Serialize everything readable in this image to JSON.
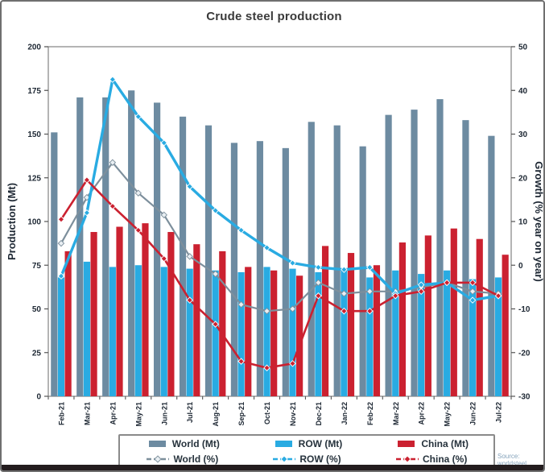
{
  "title": "Crude steel production",
  "source": "Source: worldsteel",
  "colors": {
    "world_bar": "#6d8ba1",
    "row_bar": "#29abe2",
    "china_bar": "#cb2130",
    "world_line": "#7d8f9c",
    "row_line": "#29abe2",
    "china_line": "#cb2130",
    "axis_text": "#1d2733",
    "title_text": "#3a3a3a",
    "source_text": "#85a3bb",
    "plot_border": "#8c8c8c"
  },
  "chart_data": {
    "type": "bar+line combo",
    "title": "Crude steel production",
    "categories": [
      "Feb-21",
      "Mar-21",
      "Apr-21",
      "May-21",
      "Jun-21",
      "Jul-21",
      "Aug-21",
      "Sep-21",
      "Oct-21",
      "Nov-21",
      "Dec-21",
      "Jan-22",
      "Feb-22",
      "Mar-22",
      "Apr-22",
      "May-22",
      "Jun-22",
      "Jul-22"
    ],
    "bar_series": [
      {
        "name": "World (Mt)",
        "color_key": "world_bar",
        "axis": "left",
        "values": [
          151,
          171,
          171,
          175,
          168,
          160,
          155,
          145,
          146,
          142,
          157,
          155,
          143,
          161,
          164,
          170,
          158,
          149
        ]
      },
      {
        "name": "ROW (Mt)",
        "color_key": "row_bar",
        "axis": "left",
        "values": [
          68,
          77,
          74,
          75,
          74,
          73,
          72,
          71,
          74,
          73,
          71,
          72,
          68,
          72,
          70,
          72,
          67,
          68
        ]
      },
      {
        "name": "China (Mt)",
        "color_key": "china_bar",
        "axis": "left",
        "values": [
          83,
          94,
          97,
          99,
          94,
          87,
          83,
          74,
          72,
          69,
          86,
          82,
          75,
          88,
          92,
          96,
          90,
          81
        ]
      }
    ],
    "line_series": [
      {
        "name": "World (%)",
        "color_key": "world_line",
        "axis": "right",
        "marker": "diamond",
        "marker_fill": "#e9eff3",
        "width": 2.2,
        "values": [
          5,
          15.5,
          23.5,
          16.5,
          11.5,
          2,
          -2,
          -9,
          -10.5,
          -10,
          -4,
          -6.5,
          -6,
          -6,
          -5,
          -4,
          -6,
          -6.5
        ]
      },
      {
        "name": "ROW (%)",
        "color_key": "row_line",
        "axis": "right",
        "marker": "diamond",
        "marker_fill": "#29abe2",
        "width": 3.4,
        "values": [
          -2.5,
          12,
          42.5,
          34,
          28,
          18,
          12.5,
          8,
          4,
          0.5,
          -0.5,
          -1,
          -0.5,
          -6.5,
          -4.5,
          -4,
          -8,
          -7
        ]
      },
      {
        "name": "China (%)",
        "color_key": "china_line",
        "axis": "right",
        "marker": "diamond",
        "marker_fill": "#cb2130",
        "width": 2.6,
        "values": [
          10.5,
          19.5,
          13.5,
          8,
          1.5,
          -8,
          -13.5,
          -22,
          -23.5,
          -22.5,
          -7,
          -10.5,
          -10.5,
          -7,
          -6,
          -4,
          -4,
          -7
        ]
      }
    ],
    "left_axis": {
      "label": "Production (Mt)",
      "min": 0,
      "max": 200,
      "step": 25
    },
    "right_axis": {
      "label": "Growth (% year on year)",
      "min": -30,
      "max": 50,
      "step": 10
    },
    "grid": false,
    "legend_position": "bottom"
  },
  "legend": {
    "items": [
      {
        "label": "World (Mt)",
        "glyph": "bar",
        "color_key": "world_bar"
      },
      {
        "label": "ROW (Mt)",
        "glyph": "bar",
        "color_key": "row_bar"
      },
      {
        "label": "China (Mt)",
        "glyph": "bar",
        "color_key": "china_bar"
      },
      {
        "label": "World (%)",
        "glyph": "line-diamond",
        "color_key": "world_line",
        "marker_fill": "#e9eff3"
      },
      {
        "label": "ROW (%)",
        "glyph": "line-diamond",
        "color_key": "row_line",
        "marker_fill": "#29abe2"
      },
      {
        "label": "China (%)",
        "glyph": "line-diamond",
        "color_key": "china_line",
        "marker_fill": "#cb2130"
      }
    ]
  }
}
